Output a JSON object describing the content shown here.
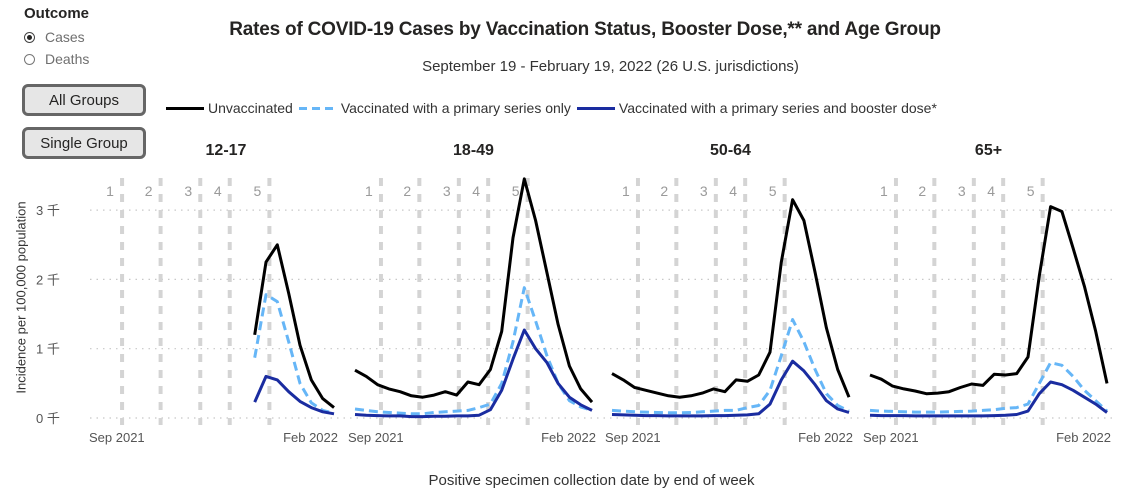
{
  "outcome": {
    "title": "Outcome",
    "options": [
      {
        "label": "Cases",
        "selected": true
      },
      {
        "label": "Deaths",
        "selected": false
      }
    ]
  },
  "buttons": {
    "all_groups": "All Groups",
    "single_group": "Single Group"
  },
  "colors": {
    "unvaccinated": "#000000",
    "primary": "#66b6f7",
    "booster": "#1a2ca0",
    "grid": "#c8c8c8",
    "event_line": "#d4d4d4"
  },
  "chart_data": {
    "type": "line",
    "title": "Rates of COVID-19 Cases by Vaccination Status, Booster Dose,** and Age Group",
    "subtitle": "September 19 - February 19, 2022 (26 U.S. jurisdictions)",
    "xlabel": "Positive specimen collection date by end of week",
    "ylabel": "Incidence per 100,000 population",
    "ylim": [
      0,
      3500
    ],
    "yticks": [
      0,
      1000,
      2000,
      3000
    ],
    "ytick_labels": [
      "0 千",
      "1 千",
      "2 千",
      "3 千"
    ],
    "xtick_labels": [
      "Sep 2021",
      "Feb 2022"
    ],
    "weeks": 22,
    "event_lines": {
      "labels": [
        "1",
        "2",
        "3",
        "4",
        "5"
      ],
      "weeks": [
        2.3,
        5.7,
        9.2,
        11.8,
        15.3
      ]
    },
    "grid": true,
    "legend": {
      "position": "top",
      "entries": [
        {
          "key": "unvaccinated",
          "label": "Unvaccinated",
          "style": "solid"
        },
        {
          "key": "primary",
          "label": "Vaccinated with a primary series only",
          "style": "dashed"
        },
        {
          "key": "booster",
          "label": "Vaccinated with a primary series and booster dose*",
          "style": "solid"
        }
      ]
    },
    "panels": [
      {
        "name": "12-17",
        "start_week": 14,
        "series": [
          {
            "key": "unvaccinated",
            "values": [
              1200,
              2250,
              2500,
              1800,
              1050,
              550,
              280,
              150
            ]
          },
          {
            "key": "primary",
            "values": [
              870,
              1780,
              1680,
              1100,
              500,
              220,
              110,
              70
            ]
          },
          {
            "key": "booster",
            "values": [
              230,
              600,
              550,
              380,
              240,
              150,
              90,
              60
            ]
          }
        ]
      },
      {
        "name": "18-49",
        "start_week": 0,
        "series": [
          {
            "key": "unvaccinated",
            "values": [
              690,
              600,
              480,
              420,
              380,
              320,
              300,
              330,
              380,
              330,
              520,
              480,
              700,
              1250,
              2600,
              3450,
              2850,
              2100,
              1350,
              750,
              420,
              230
            ]
          },
          {
            "key": "primary",
            "values": [
              130,
              110,
              90,
              80,
              70,
              60,
              60,
              80,
              90,
              100,
              110,
              150,
              200,
              500,
              1100,
              1880,
              1400,
              900,
              500,
              250,
              160,
              110
            ]
          },
          {
            "key": "booster",
            "values": [
              50,
              40,
              35,
              30,
              30,
              20,
              20,
              25,
              25,
              30,
              30,
              40,
              120,
              400,
              850,
              1270,
              1000,
              800,
              500,
              300,
              190,
              110
            ]
          }
        ]
      },
      {
        "name": "50-64",
        "start_week": 0,
        "series": [
          {
            "key": "unvaccinated",
            "values": [
              640,
              550,
              440,
              400,
              360,
              320,
              300,
              320,
              360,
              420,
              380,
              550,
              530,
              620,
              950,
              2250,
              3150,
              2850,
              2100,
              1300,
              700,
              300
            ]
          },
          {
            "key": "primary",
            "values": [
              110,
              100,
              90,
              85,
              80,
              75,
              75,
              80,
              90,
              100,
              110,
              110,
              150,
              180,
              400,
              900,
              1420,
              1100,
              700,
              350,
              180,
              100
            ]
          },
          {
            "key": "booster",
            "values": [
              50,
              45,
              40,
              35,
              35,
              30,
              30,
              30,
              30,
              35,
              35,
              40,
              45,
              60,
              200,
              550,
              820,
              680,
              480,
              250,
              130,
              80
            ]
          }
        ]
      },
      {
        "name": "65+",
        "start_week": 0,
        "series": [
          {
            "key": "unvaccinated",
            "values": [
              620,
              560,
              460,
              420,
              390,
              350,
              360,
              380,
              440,
              490,
              470,
              630,
              620,
              640,
              880,
              2050,
              3050,
              2980,
              2450,
              1900,
              1250,
              500
            ]
          },
          {
            "key": "primary",
            "values": [
              110,
              100,
              95,
              90,
              85,
              85,
              85,
              90,
              95,
              100,
              110,
              120,
              140,
              150,
              200,
              500,
              800,
              760,
              600,
              400,
              250,
              100
            ]
          },
          {
            "key": "booster",
            "values": [
              40,
              35,
              35,
              35,
              30,
              30,
              30,
              30,
              30,
              30,
              30,
              35,
              40,
              50,
              100,
              350,
              520,
              480,
              400,
              300,
              200,
              80
            ]
          }
        ]
      }
    ]
  }
}
